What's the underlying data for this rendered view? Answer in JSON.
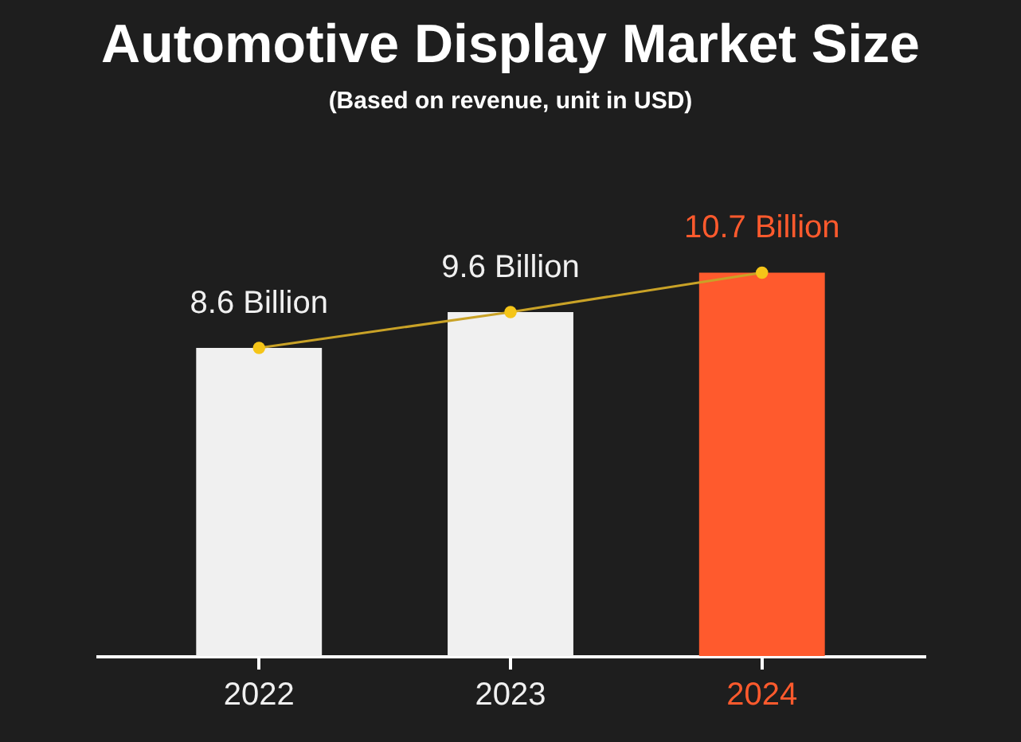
{
  "chart_data": {
    "type": "bar",
    "title": "Automotive Display Market Size",
    "subtitle": "(Based on revenue, unit in USD)",
    "categories": [
      "2022",
      "2023",
      "2024"
    ],
    "series": [
      {
        "colors": [
          "#f0f0f0",
          "#f0f0f0",
          "#ff5a2d"
        ],
        "values": [
          8.6,
          9.6,
          10.7
        ],
        "value_labels": [
          "8.6 Billion",
          "9.6 Billion",
          "10.7 Billion"
        ]
      },
      {
        "type": "line",
        "color": "#c9a227",
        "values": [
          8.6,
          9.6,
          10.7
        ]
      }
    ],
    "marker": "circle",
    "grid": false
  }
}
